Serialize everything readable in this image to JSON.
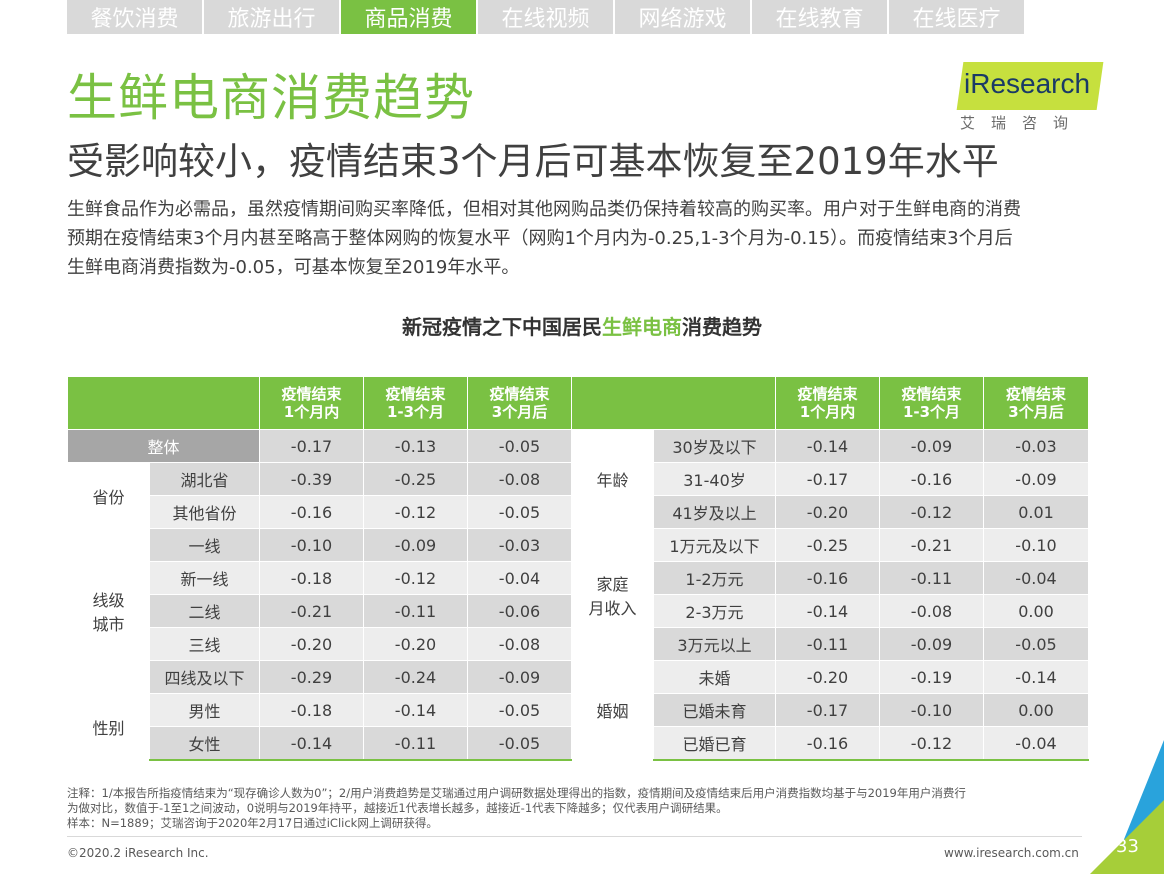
{
  "nav": {
    "tabs": [
      {
        "label": "餐饮消费",
        "active": false
      },
      {
        "label": "旅游出行",
        "active": false
      },
      {
        "label": "商品消费",
        "active": true
      },
      {
        "label": "在线视频",
        "active": false
      },
      {
        "label": "网络游戏",
        "active": false
      },
      {
        "label": "在线教育",
        "active": false
      },
      {
        "label": "在线医疗",
        "active": false
      }
    ]
  },
  "header": {
    "title": "生鲜电商消费趋势",
    "subtitle": "受影响较小，疫情结束3个月后可基本恢复至2019年水平"
  },
  "logo": {
    "text": "iResearch",
    "sub": "艾瑞咨询",
    "color": "#c6e03e"
  },
  "intro": {
    "line1": "生鲜食品作为必需品，虽然疫情期间购买率降低，但相对其他网购品类仍保持着较高的购买率。用户对于生鲜电商的消费",
    "line2": "预期在疫情结束3个月内甚至略高于整体网购的恢复水平（网购1个月内为-0.25,1-3个月为-0.15）。而疫情结束3个月后",
    "line3": "生鲜电商消费指数为-0.05，可基本恢复至2019年水平。"
  },
  "table_title": {
    "pre": "新冠疫情之下中国居民",
    "highlight": "生鲜电商",
    "post": "消费趋势"
  },
  "table": {
    "headers": [
      [
        "疫情结束",
        "1个月内"
      ],
      [
        "疫情结束",
        "1-3个月"
      ],
      [
        "疫情结束",
        "3个月后"
      ]
    ],
    "overall": {
      "label": "整体",
      "values": [
        "-0.17",
        "-0.13",
        "-0.05"
      ]
    },
    "groups": {
      "province": "省份",
      "city": "线级\n城市",
      "gender": "性别",
      "age": "年龄",
      "income": "家庭\n月收入",
      "marriage": "婚姻"
    },
    "left_rows": [
      {
        "label": "湖北省",
        "values": [
          "-0.39",
          "-0.25",
          "-0.08"
        ]
      },
      {
        "label": "其他省份",
        "values": [
          "-0.16",
          "-0.12",
          "-0.05"
        ]
      },
      {
        "label": "一线",
        "values": [
          "-0.10",
          "-0.09",
          "-0.03"
        ]
      },
      {
        "label": "新一线",
        "values": [
          "-0.18",
          "-0.12",
          "-0.04"
        ]
      },
      {
        "label": "二线",
        "values": [
          "-0.21",
          "-0.11",
          "-0.06"
        ]
      },
      {
        "label": "三线",
        "values": [
          "-0.20",
          "-0.20",
          "-0.08"
        ]
      },
      {
        "label": "四线及以下",
        "values": [
          "-0.29",
          "-0.24",
          "-0.09"
        ]
      },
      {
        "label": "男性",
        "values": [
          "-0.18",
          "-0.14",
          "-0.05"
        ]
      },
      {
        "label": "女性",
        "values": [
          "-0.14",
          "-0.11",
          "-0.05"
        ]
      }
    ],
    "right_rows": [
      {
        "label": "30岁及以下",
        "values": [
          "-0.14",
          "-0.09",
          "-0.03"
        ]
      },
      {
        "label": "31-40岁",
        "values": [
          "-0.17",
          "-0.16",
          "-0.09"
        ]
      },
      {
        "label": "41岁及以上",
        "values": [
          "-0.20",
          "-0.12",
          "0.01"
        ]
      },
      {
        "label": "1万元及以下",
        "values": [
          "-0.25",
          "-0.21",
          "-0.10"
        ]
      },
      {
        "label": "1-2万元",
        "values": [
          "-0.16",
          "-0.11",
          "-0.04"
        ]
      },
      {
        "label": "2-3万元",
        "values": [
          "-0.14",
          "-0.08",
          "0.00"
        ]
      },
      {
        "label": "3万元以上",
        "values": [
          "-0.11",
          "-0.09",
          "-0.05"
        ]
      },
      {
        "label": "未婚",
        "values": [
          "-0.20",
          "-0.19",
          "-0.14"
        ]
      },
      {
        "label": "已婚未育",
        "values": [
          "-0.17",
          "-0.10",
          "0.00"
        ]
      },
      {
        "label": "已婚已育",
        "values": [
          "-0.16",
          "-0.12",
          "-0.04"
        ]
      }
    ]
  },
  "notes": {
    "line1": "注释：1/本报告所指疫情结束为“现存确诊人数为0”；2/用户消费趋势是艾瑞通过用户调研数据处理得出的指数，疫情期间及疫情结束后用户消费指数均基于与2019年用户消费行",
    "line2": "为做对比，数值于-1至1之间波动，0说明与2019年持平，越接近1代表增长越多，越接近-1代表下降越多；仅代表用户调研结果。",
    "line3": "样本：N=1889；艾瑞咨询于2020年2月17日通过iClick网上调研获得。"
  },
  "footer": {
    "copyright": "©2020.2 iResearch Inc.",
    "url": "www.iresearch.com.cn",
    "page": "33"
  },
  "colors": {
    "accent": "#7ac143",
    "gray": "#d9d9d9",
    "corner_blue": "#29a3dc"
  }
}
